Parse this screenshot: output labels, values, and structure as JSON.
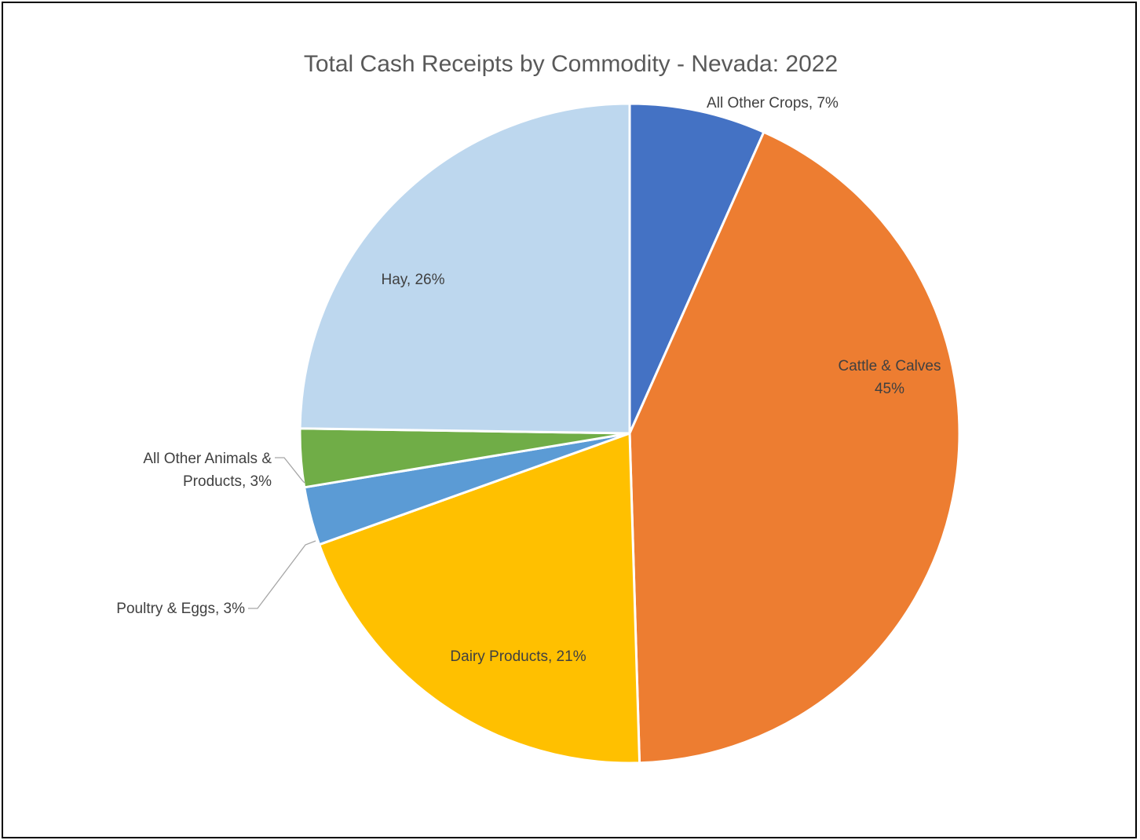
{
  "chart_data": {
    "type": "pie",
    "title": "Total Cash Receipts by Commodity - Nevada:  2022",
    "start_angle_deg": 0,
    "direction": "clockwise",
    "slices": [
      {
        "name": "All Other Crops",
        "value": 7,
        "label_lines": [
          "All Other Crops, 7%"
        ],
        "color": "#4472C4"
      },
      {
        "name": "Cattle & Calves",
        "value": 45,
        "label_lines": [
          "Cattle & Calves",
          "45%"
        ],
        "color": "#ED7D31"
      },
      {
        "name": "Dairy Products",
        "value": 21,
        "label_lines": [
          "Dairy Products, 21%"
        ],
        "color": "#FFC000"
      },
      {
        "name": "Poultry & Eggs",
        "value": 3,
        "label_lines": [
          "Poultry & Eggs, 3%"
        ],
        "color": "#5B9BD5"
      },
      {
        "name": "All Other Animals & Products",
        "value": 3,
        "label_lines": [
          "All Other Animals &",
          "Products, 3%"
        ],
        "color": "#70AD47"
      },
      {
        "name": "Hay",
        "value": 26,
        "label_lines": [
          "Hay, 26%"
        ],
        "color": "#BDD7EE"
      }
    ]
  }
}
